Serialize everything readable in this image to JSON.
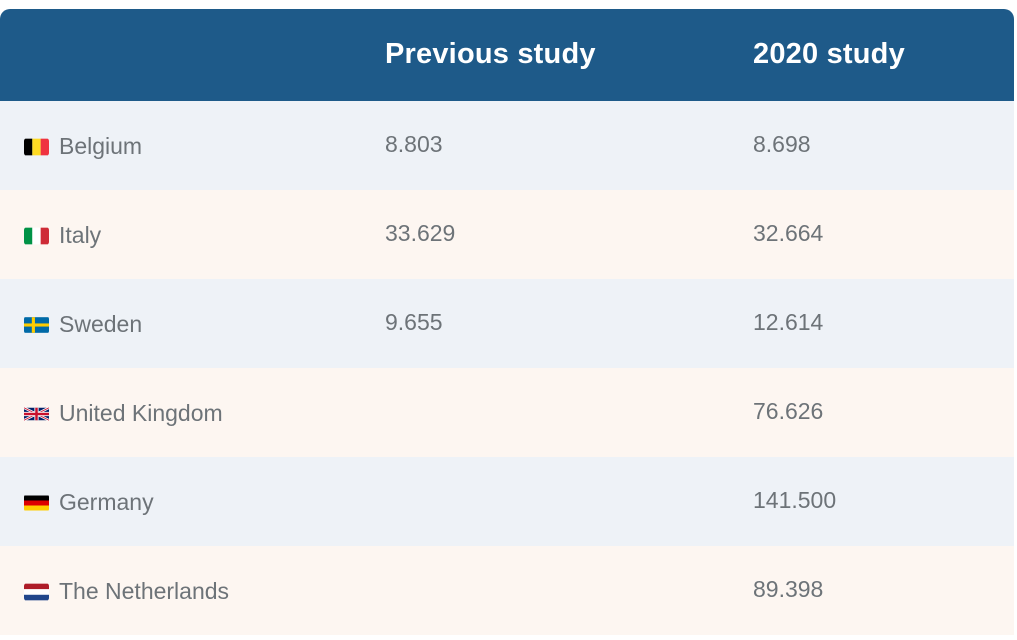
{
  "header": {
    "col_country": "",
    "col_previous": "Previous study",
    "col_2020": "2020 study"
  },
  "rows": [
    {
      "country": "Belgium",
      "flag_icon": "belgium-flag-icon",
      "previous": "8.803",
      "study_2020": "8.698"
    },
    {
      "country": "Italy",
      "flag_icon": "italy-flag-icon",
      "previous": "33.629",
      "study_2020": "32.664"
    },
    {
      "country": "Sweden",
      "flag_icon": "sweden-flag-icon",
      "previous": "9.655",
      "study_2020": "12.614"
    },
    {
      "country": "United Kingdom",
      "flag_icon": "uk-flag-icon",
      "previous": "",
      "study_2020": "76.626"
    },
    {
      "country": "Germany",
      "flag_icon": "germany-flag-icon",
      "previous": "",
      "study_2020": "141.500"
    },
    {
      "country": "The Netherlands",
      "flag_icon": "netherlands-flag-icon",
      "previous": "",
      "study_2020": "89.398"
    }
  ],
  "colors": {
    "header_bg": "#1e5a89",
    "row_odd_bg": "#eef2f7",
    "row_even_bg": "#fdf6f1",
    "text": "#6d7378"
  }
}
